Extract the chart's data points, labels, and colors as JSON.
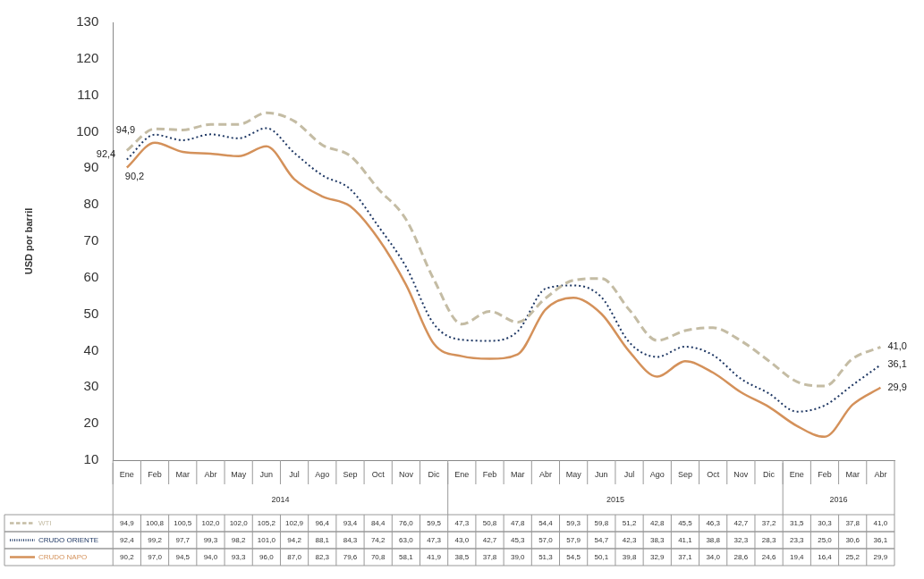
{
  "chart_data": {
    "type": "line",
    "ylabel": "USD por barril",
    "categories": [
      "Ene",
      "Feb",
      "Mar",
      "Abr",
      "May",
      "Jun",
      "Jul",
      "Ago",
      "Sep",
      "Oct",
      "Nov",
      "Dic",
      "Ene",
      "Feb",
      "Mar",
      "Abr",
      "May",
      "Jun",
      "Jul",
      "Ago",
      "Sep",
      "Oct",
      "Nov",
      "Dic",
      "Ene",
      "Feb",
      "Mar",
      "Abr"
    ],
    "annotations": [
      "2014",
      "2015",
      "2016"
    ],
    "series": [
      {
        "name": "WTI",
        "color": "#c4bca4",
        "line_style": "dashed",
        "values": [
          94.9,
          100.8,
          100.5,
          102.0,
          102.0,
          105.2,
          102.9,
          96.4,
          93.4,
          84.4,
          76.0,
          59.5,
          47.3,
          50.8,
          47.8,
          54.4,
          59.3,
          59.8,
          51.2,
          42.8,
          45.5,
          46.3,
          42.7,
          37.2,
          31.5,
          30.3,
          37.8,
          41.0
        ],
        "value_labels": [
          "94,9",
          "100,8",
          "100,5",
          "102,0",
          "102,0",
          "105,2",
          "102,9",
          "96,4",
          "93,4",
          "84,4",
          "76,0",
          "59,5",
          "47,3",
          "50,8",
          "47,8",
          "54,4",
          "59,3",
          "59,8",
          "51,2",
          "42,8",
          "45,5",
          "46,3",
          "42,7",
          "37,2",
          "31,5",
          "30,3",
          "37,8",
          "41,0"
        ]
      },
      {
        "name": "CRUDO ORIENTE",
        "color": "#1f3864",
        "line_style": "dotted",
        "values": [
          92.4,
          99.2,
          97.7,
          99.3,
          98.2,
          101.0,
          94.2,
          88.1,
          84.3,
          74.2,
          63.0,
          47.3,
          43.0,
          42.7,
          45.3,
          57.0,
          57.9,
          54.7,
          42.3,
          38.3,
          41.1,
          38.8,
          32.3,
          28.3,
          23.3,
          25.0,
          30.6,
          36.1
        ],
        "value_labels": [
          "92,4",
          "99,2",
          "97,7",
          "99,3",
          "98,2",
          "101,0",
          "94,2",
          "88,1",
          "84,3",
          "74,2",
          "63,0",
          "47,3",
          "43,0",
          "42,7",
          "45,3",
          "57,0",
          "57,9",
          "54,7",
          "42,3",
          "38,3",
          "41,1",
          "38,8",
          "32,3",
          "28,3",
          "23,3",
          "25,0",
          "30,6",
          "36,1"
        ]
      },
      {
        "name": "CRUDO NAPO",
        "color": "#d4915a",
        "line_style": "solid",
        "values": [
          90.2,
          97.0,
          94.5,
          94.0,
          93.3,
          96.0,
          87.0,
          82.3,
          79.6,
          70.8,
          58.1,
          41.9,
          38.5,
          37.8,
          39.0,
          51.3,
          54.5,
          50.1,
          39.8,
          32.9,
          37.1,
          34.0,
          28.6,
          24.6,
          19.4,
          16.4,
          25.2,
          29.9
        ],
        "value_labels": [
          "90,2",
          "97,0",
          "94,5",
          "94,0",
          "93,3",
          "96,0",
          "87,0",
          "82,3",
          "79,6",
          "70,8",
          "58,1",
          "41,9",
          "38,5",
          "37,8",
          "39,0",
          "51,3",
          "54,5",
          "50,1",
          "39,8",
          "32,9",
          "37,1",
          "34,0",
          "28,6",
          "24,6",
          "19,4",
          "16,4",
          "25,2",
          "29,9"
        ]
      }
    ],
    "ylim": [
      10,
      130
    ],
    "yticks": [
      10,
      20,
      30,
      40,
      50,
      60,
      70,
      80,
      90,
      100,
      110,
      120,
      130
    ],
    "grid": false,
    "legend": "bottom",
    "marker": "none"
  }
}
